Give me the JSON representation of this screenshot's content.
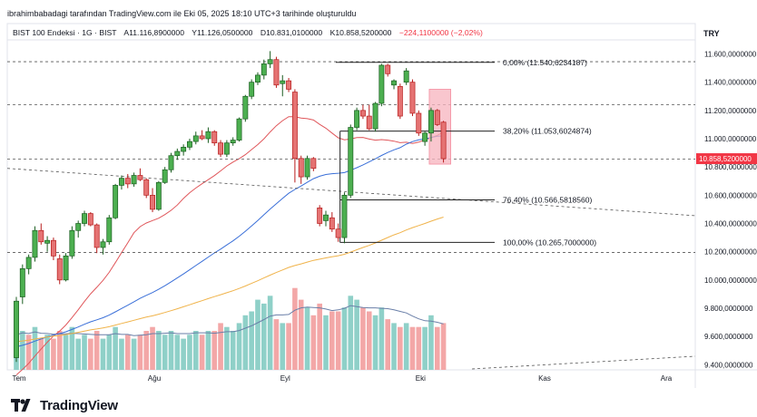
{
  "header": {
    "attribution": "ibrahimbabadagi tarafından TradingView.com ile Eki 05, 2025 18:10 UTC+3 tarihinde oluşturuldu"
  },
  "legend": {
    "symbol": "BIST 100 Endeksi · 1G · BIST",
    "open": "A11.116,8900000",
    "high": "Y11.126,0500000",
    "low": "D10.831,0100000",
    "close": "K10.858,5200000",
    "change": "−224,1100000 (−2,02%)",
    "change_color": "#f23645"
  },
  "currency": "TRY",
  "brand": {
    "name": "TradingView"
  },
  "colors": {
    "up": "#089981",
    "up_fill": "#4caf50",
    "down": "#f23645",
    "down_fill": "#e57373",
    "ma_fast": "#e0575b",
    "ma_mid": "#3a6fd8",
    "ma_slow": "#f0b34a",
    "vol_up": "#8fd0c8",
    "vol_down": "#f3a7a7",
    "vol_ma": "#6a7fa8",
    "highlight": "#f7b3bd"
  },
  "chart_data": {
    "type": "candlestick",
    "x_ticks": [
      "Tem",
      "Ağu",
      "Eyl",
      "Eki",
      "Kas",
      "Ara"
    ],
    "y_ticks": [
      "11.600,0000000",
      "11.400,0000000",
      "11.200,0000000",
      "11.000,0000000",
      "10.800,0000000",
      "10.600,0000000",
      "10.400,0000000",
      "10.200,0000000",
      "10.000,0000000",
      "9.800,0000000",
      "9.600,0000000",
      "9.400,0000000"
    ],
    "ylim": [
      9350,
      11660
    ],
    "last_price_label": "10.858,5200000",
    "last_price": 10858.52,
    "fibonacci": [
      {
        "label": "0,00% (11.540,6234187)",
        "value": 11540.62
      },
      {
        "label": "38,20% (11.053,6024874)",
        "value": 11053.6
      },
      {
        "label": "76,40% (10.566,5818560)",
        "value": 10566.58
      },
      {
        "label": "100,00% (10.265,7000000)",
        "value": 10265.7
      }
    ],
    "horizontal_dashed_levels": [
      11545,
      11240,
      10855,
      10195
    ],
    "candles": [
      {
        "o": 9450,
        "h": 9880,
        "l": 9420,
        "c": 9850
      },
      {
        "o": 9880,
        "h": 10110,
        "l": 9830,
        "c": 10080
      },
      {
        "o": 10080,
        "h": 10180,
        "l": 10040,
        "c": 10160
      },
      {
        "o": 10160,
        "h": 10380,
        "l": 10130,
        "c": 10350
      },
      {
        "o": 10350,
        "h": 10400,
        "l": 10250,
        "c": 10270
      },
      {
        "o": 10260,
        "h": 10310,
        "l": 10200,
        "c": 10280
      },
      {
        "o": 10280,
        "h": 10300,
        "l": 10140,
        "c": 10170
      },
      {
        "o": 10150,
        "h": 10180,
        "l": 9970,
        "c": 10000
      },
      {
        "o": 10000,
        "h": 10190,
        "l": 9990,
        "c": 10170
      },
      {
        "o": 10170,
        "h": 10380,
        "l": 10150,
        "c": 10350
      },
      {
        "o": 10350,
        "h": 10420,
        "l": 10300,
        "c": 10400
      },
      {
        "o": 10400,
        "h": 10490,
        "l": 10380,
        "c": 10470
      },
      {
        "o": 10470,
        "h": 10480,
        "l": 10380,
        "c": 10390
      },
      {
        "o": 10390,
        "h": 10400,
        "l": 10190,
        "c": 10230
      },
      {
        "o": 10230,
        "h": 10290,
        "l": 10180,
        "c": 10270
      },
      {
        "o": 10270,
        "h": 10460,
        "l": 10250,
        "c": 10440
      },
      {
        "o": 10440,
        "h": 10680,
        "l": 10430,
        "c": 10670
      },
      {
        "o": 10670,
        "h": 10740,
        "l": 10640,
        "c": 10720
      },
      {
        "o": 10720,
        "h": 10750,
        "l": 10650,
        "c": 10680
      },
      {
        "o": 10680,
        "h": 10760,
        "l": 10660,
        "c": 10740
      },
      {
        "o": 10740,
        "h": 10790,
        "l": 10700,
        "c": 10710
      },
      {
        "o": 10710,
        "h": 10720,
        "l": 10580,
        "c": 10600
      },
      {
        "o": 10600,
        "h": 10650,
        "l": 10480,
        "c": 10500
      },
      {
        "o": 10500,
        "h": 10700,
        "l": 10490,
        "c": 10690
      },
      {
        "o": 10690,
        "h": 10800,
        "l": 10680,
        "c": 10780
      },
      {
        "o": 10780,
        "h": 10900,
        "l": 10760,
        "c": 10880
      },
      {
        "o": 10880,
        "h": 10930,
        "l": 10850,
        "c": 10910
      },
      {
        "o": 10910,
        "h": 10960,
        "l": 10880,
        "c": 10940
      },
      {
        "o": 10940,
        "h": 11000,
        "l": 10920,
        "c": 10980
      },
      {
        "o": 10980,
        "h": 11050,
        "l": 10960,
        "c": 11020
      },
      {
        "o": 11020,
        "h": 11060,
        "l": 10990,
        "c": 11000
      },
      {
        "o": 11000,
        "h": 11080,
        "l": 10970,
        "c": 11050
      },
      {
        "o": 11050,
        "h": 11060,
        "l": 10950,
        "c": 10970
      },
      {
        "o": 10970,
        "h": 10990,
        "l": 10870,
        "c": 10890
      },
      {
        "o": 10890,
        "h": 10990,
        "l": 10870,
        "c": 10970
      },
      {
        "o": 10970,
        "h": 11010,
        "l": 10950,
        "c": 10990
      },
      {
        "o": 10990,
        "h": 11150,
        "l": 10980,
        "c": 11140
      },
      {
        "o": 11140,
        "h": 11310,
        "l": 11120,
        "c": 11300
      },
      {
        "o": 11300,
        "h": 11420,
        "l": 11280,
        "c": 11400
      },
      {
        "o": 11400,
        "h": 11470,
        "l": 11380,
        "c": 11450
      },
      {
        "o": 11450,
        "h": 11560,
        "l": 11420,
        "c": 11530
      },
      {
        "o": 11530,
        "h": 11620,
        "l": 11500,
        "c": 11560
      },
      {
        "o": 11560,
        "h": 11580,
        "l": 11360,
        "c": 11380
      },
      {
        "o": 11390,
        "h": 11450,
        "l": 11300,
        "c": 11410
      },
      {
        "o": 11410,
        "h": 11430,
        "l": 11330,
        "c": 11350
      },
      {
        "o": 11330,
        "h": 11350,
        "l": 10690,
        "c": 10860
      },
      {
        "o": 10860,
        "h": 10880,
        "l": 10680,
        "c": 10730
      },
      {
        "o": 10730,
        "h": 10880,
        "l": 10710,
        "c": 10860
      },
      {
        "o": 10860,
        "h": 10870,
        "l": 10770,
        "c": 10790
      },
      {
        "o": 10510,
        "h": 10530,
        "l": 10380,
        "c": 10400
      },
      {
        "o": 10420,
        "h": 10490,
        "l": 10380,
        "c": 10460
      },
      {
        "o": 10440,
        "h": 10480,
        "l": 10340,
        "c": 10360
      },
      {
        "o": 10360,
        "h": 10400,
        "l": 10270,
        "c": 10300
      },
      {
        "o": 10300,
        "h": 10620,
        "l": 10260,
        "c": 10600
      },
      {
        "o": 10600,
        "h": 11100,
        "l": 10580,
        "c": 11080
      },
      {
        "o": 11080,
        "h": 11220,
        "l": 11060,
        "c": 11200
      },
      {
        "o": 11200,
        "h": 11240,
        "l": 11140,
        "c": 11160
      },
      {
        "o": 11160,
        "h": 11240,
        "l": 11060,
        "c": 11070
      },
      {
        "o": 11070,
        "h": 11260,
        "l": 11050,
        "c": 11250
      },
      {
        "o": 11250,
        "h": 11530,
        "l": 11230,
        "c": 11520
      },
      {
        "o": 11520,
        "h": 11530,
        "l": 11440,
        "c": 11460
      },
      {
        "o": 11380,
        "h": 11420,
        "l": 11350,
        "c": 11410
      },
      {
        "o": 11370,
        "h": 11390,
        "l": 11140,
        "c": 11160
      },
      {
        "o": 11400,
        "h": 11500,
        "l": 11380,
        "c": 11480
      },
      {
        "o": 11400,
        "h": 11420,
        "l": 11160,
        "c": 11180
      },
      {
        "o": 11180,
        "h": 11200,
        "l": 11020,
        "c": 11040
      },
      {
        "o": 10980,
        "h": 11050,
        "l": 10950,
        "c": 11040
      },
      {
        "o": 11040,
        "h": 11220,
        "l": 10980,
        "c": 11200
      },
      {
        "o": 11200,
        "h": 11210,
        "l": 11090,
        "c": 11100
      },
      {
        "o": 11116.89,
        "h": 11126.05,
        "l": 10831.01,
        "c": 10858.52
      }
    ],
    "volume": [
      {
        "v": 9,
        "up": true
      },
      {
        "v": 10,
        "up": true
      },
      {
        "v": 9,
        "up": false
      },
      {
        "v": 11,
        "up": true
      },
      {
        "v": 8,
        "up": false
      },
      {
        "v": 9,
        "up": true
      },
      {
        "v": 8,
        "up": false
      },
      {
        "v": 10,
        "up": false
      },
      {
        "v": 9,
        "up": true
      },
      {
        "v": 11,
        "up": true
      },
      {
        "v": 8,
        "up": true
      },
      {
        "v": 9,
        "up": true
      },
      {
        "v": 8,
        "up": false
      },
      {
        "v": 10,
        "up": false
      },
      {
        "v": 8,
        "up": true
      },
      {
        "v": 9,
        "up": true
      },
      {
        "v": 11,
        "up": true
      },
      {
        "v": 8,
        "up": true
      },
      {
        "v": 9,
        "up": false
      },
      {
        "v": 8,
        "up": true
      },
      {
        "v": 9,
        "up": false
      },
      {
        "v": 10,
        "up": false
      },
      {
        "v": 11,
        "up": false
      },
      {
        "v": 10,
        "up": true
      },
      {
        "v": 9,
        "up": true
      },
      {
        "v": 10,
        "up": true
      },
      {
        "v": 9,
        "up": true
      },
      {
        "v": 8,
        "up": true
      },
      {
        "v": 9,
        "up": true
      },
      {
        "v": 10,
        "up": true
      },
      {
        "v": 9,
        "up": false
      },
      {
        "v": 10,
        "up": true
      },
      {
        "v": 10,
        "up": false
      },
      {
        "v": 12,
        "up": false
      },
      {
        "v": 11,
        "up": true
      },
      {
        "v": 10,
        "up": true
      },
      {
        "v": 12,
        "up": true
      },
      {
        "v": 14,
        "up": true
      },
      {
        "v": 15,
        "up": true
      },
      {
        "v": 18,
        "up": true
      },
      {
        "v": 17,
        "up": true
      },
      {
        "v": 19,
        "up": true
      },
      {
        "v": 13,
        "up": false
      },
      {
        "v": 12,
        "up": true
      },
      {
        "v": 12,
        "up": false
      },
      {
        "v": 21,
        "up": false
      },
      {
        "v": 18,
        "up": false
      },
      {
        "v": 16,
        "up": true
      },
      {
        "v": 14,
        "up": false
      },
      {
        "v": 17,
        "up": false
      },
      {
        "v": 14,
        "up": true
      },
      {
        "v": 15,
        "up": false
      },
      {
        "v": 15,
        "up": false
      },
      {
        "v": 16,
        "up": true
      },
      {
        "v": 19,
        "up": true
      },
      {
        "v": 18,
        "up": true
      },
      {
        "v": 16,
        "up": false
      },
      {
        "v": 15,
        "up": false
      },
      {
        "v": 14,
        "up": true
      },
      {
        "v": 16,
        "up": true
      },
      {
        "v": 13,
        "up": false
      },
      {
        "v": 12,
        "up": true
      },
      {
        "v": 11,
        "up": false
      },
      {
        "v": 12,
        "up": true
      },
      {
        "v": 11,
        "up": false
      },
      {
        "v": 11,
        "up": false
      },
      {
        "v": 11,
        "up": true
      },
      {
        "v": 14,
        "up": true
      },
      {
        "v": 11,
        "up": false
      },
      {
        "v": 12,
        "up": false
      }
    ]
  }
}
